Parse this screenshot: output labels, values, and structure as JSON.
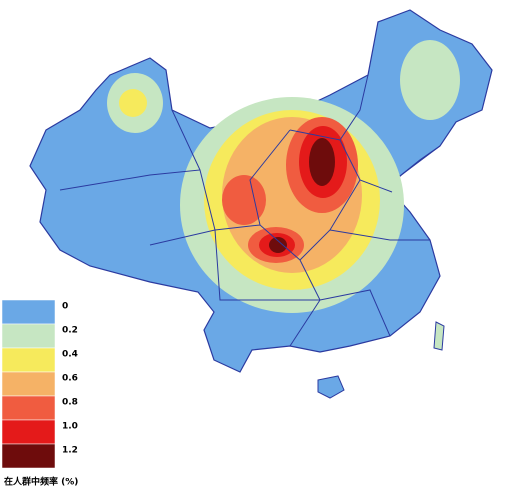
{
  "legend": {
    "title": "在人群中频率 (%)",
    "items": [
      {
        "label": "0",
        "color": "#6aa8e6"
      },
      {
        "label": "0.2",
        "color": "#c6e6c2"
      },
      {
        "label": "0.4",
        "color": "#f6ea5c"
      },
      {
        "label": "0.6",
        "color": "#f5b266"
      },
      {
        "label": "0.8",
        "color": "#f05c40"
      },
      {
        "label": "1.0",
        "color": "#e41a1a"
      },
      {
        "label": "1.2",
        "color": "#6e0c0c"
      }
    ]
  }
}
